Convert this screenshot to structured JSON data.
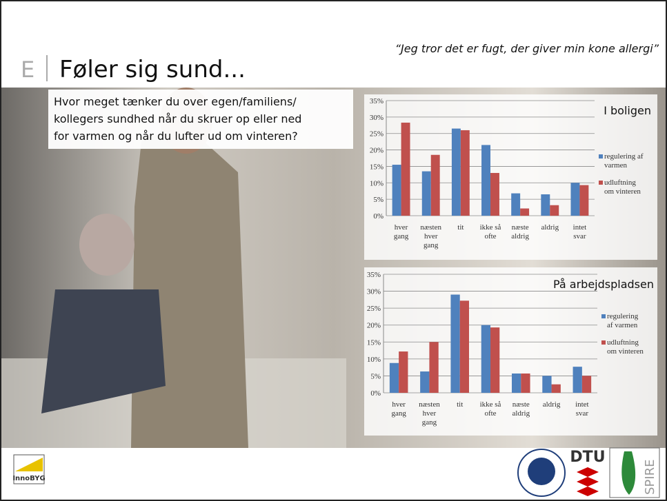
{
  "slide": {
    "letter": "E",
    "title": "Føler sig sund...",
    "quote": "“Jeg tror det er fugt, der giver min kone allergi”",
    "question": [
      "Hvor meget tænker du over egen/familiens/",
      "kollegers sundhed når du skruer op eller ned",
      "for varmen og når du lufter ud om vinteren?"
    ],
    "logo_left": "InnoBYG",
    "logo_dtu": "DTU",
    "logo_spire": "SPIRE"
  },
  "chart_data": [
    {
      "type": "bar",
      "title": "I boligen",
      "categories": [
        "hver\ngang",
        "næsten\nhver\ngang",
        "tit",
        "ikke så\nofte",
        "næste\naldrig",
        "aldrig",
        "intet\nsvar"
      ],
      "series": [
        {
          "name": "regulering af\nvarmen",
          "color": "#4f81bd",
          "values": [
            15.5,
            13.5,
            26.5,
            21.5,
            6.8,
            6.5,
            10
          ]
        },
        {
          "name": "udluftning\nom vinteren",
          "color": "#c0504d",
          "values": [
            28.3,
            18.5,
            26,
            13,
            2.2,
            3.2,
            9.3
          ]
        }
      ],
      "ylim": [
        0,
        35
      ],
      "yticks": [
        {
          "value": 0,
          "label": "0%"
        },
        {
          "value": 5,
          "label": "5%"
        },
        {
          "value": 10,
          "label": "10%"
        },
        {
          "value": 15,
          "label": "15%"
        },
        {
          "value": 20,
          "label": "20%"
        },
        {
          "value": 25,
          "label": "25%"
        },
        {
          "value": 30,
          "label": "30%"
        },
        {
          "value": 35,
          "label": "35%"
        }
      ],
      "grid": true,
      "legend": "right"
    },
    {
      "type": "bar",
      "title": "På arbejdspladsen",
      "categories": [
        "hver\ngang",
        "næsten\nhver\ngang",
        "tit",
        "ikke så\nofte",
        "næste\naldrig",
        "aldrig",
        "intet\nsvar"
      ],
      "series": [
        {
          "name": "regulering\naf varmen",
          "color": "#4f81bd",
          "values": [
            8.8,
            6.3,
            29,
            20,
            5.7,
            5,
            7.7
          ]
        },
        {
          "name": "udluftning\nom vinteren",
          "color": "#c0504d",
          "values": [
            12.2,
            15,
            27.2,
            19.3,
            5.7,
            2.5,
            5
          ]
        }
      ],
      "ylim": [
        0,
        35
      ],
      "yticks": [
        {
          "value": 0,
          "label": "0%"
        },
        {
          "value": 5,
          "label": "5%"
        },
        {
          "value": 10,
          "label": "10%"
        },
        {
          "value": 15,
          "label": "15%"
        },
        {
          "value": 20,
          "label": "20%"
        },
        {
          "value": 25,
          "label": "25%"
        },
        {
          "value": 30,
          "label": "30%"
        },
        {
          "value": 35,
          "label": "35%"
        }
      ],
      "grid": true,
      "legend": "right"
    }
  ]
}
